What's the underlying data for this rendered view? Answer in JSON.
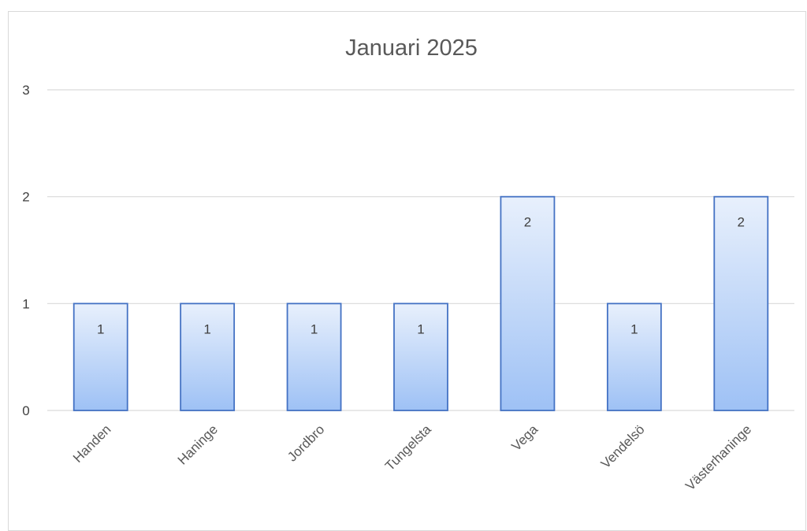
{
  "chart_data": {
    "type": "bar",
    "title": "Januari 2025",
    "categories": [
      "Handen",
      "Haninge",
      "Jordbro",
      "Tungelsta",
      "Vega",
      "Vendelsö",
      "Västerhaninge"
    ],
    "values": [
      1,
      1,
      1,
      1,
      2,
      1,
      2
    ],
    "data_labels": [
      "1",
      "1",
      "1",
      "1",
      "2",
      "1",
      "2"
    ],
    "yticks": [
      "0",
      "1",
      "2",
      "3"
    ],
    "ylim": [
      0,
      3
    ],
    "grid": true,
    "legend": "none",
    "colors": {
      "bar_top": "#e8f0fc",
      "bar_bottom": "#9ec1f5",
      "bar_border": "#4472c4"
    }
  }
}
